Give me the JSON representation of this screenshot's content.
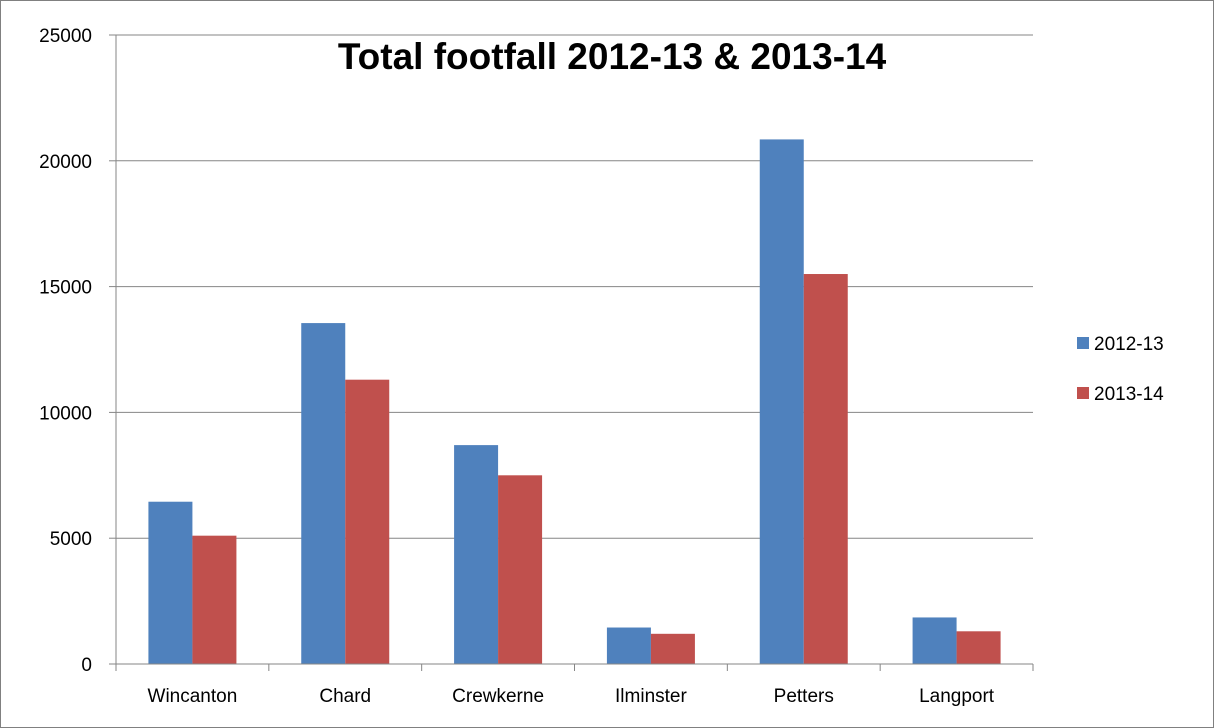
{
  "chart_data": {
    "type": "bar",
    "title": "Total footfall 2012-13 & 2013-14",
    "xlabel": "",
    "ylabel": "",
    "categories": [
      "Wincanton",
      "Chard",
      "Crewkerne",
      "Ilminster",
      "Petters",
      "Langport"
    ],
    "series": [
      {
        "name": "2012-13",
        "color": "#4F81BD",
        "values": [
          6450,
          13550,
          8700,
          1450,
          20850,
          1850
        ]
      },
      {
        "name": "2013-14",
        "color": "#C0504D",
        "values": [
          5100,
          11300,
          7500,
          1200,
          15500,
          1300
        ]
      }
    ],
    "ylim": [
      0,
      25000
    ],
    "yticks": [
      "0",
      "5000",
      "10000",
      "15000",
      "20000",
      "25000"
    ],
    "grid": true,
    "legend_position": "right"
  }
}
